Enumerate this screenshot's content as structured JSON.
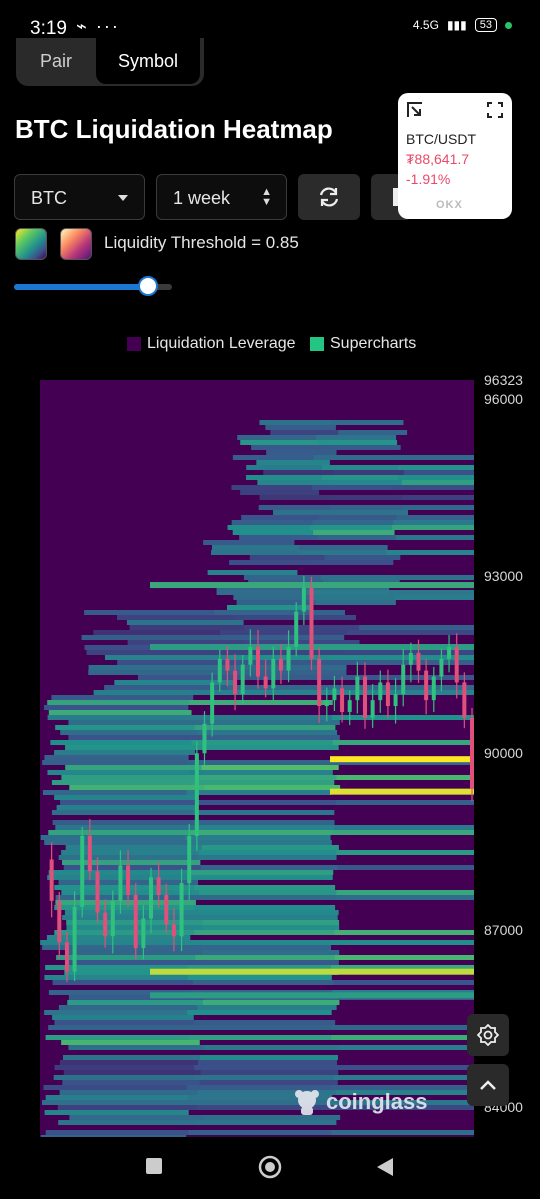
{
  "status_bar": {
    "time": "3:19",
    "network": "4.5G",
    "battery": "53"
  },
  "tabs": [
    {
      "label": "Pair"
    },
    {
      "label": "Symbol"
    }
  ],
  "title": "BTC Liquidation Heatmap",
  "controls": {
    "coin_select": {
      "value": "BTC"
    },
    "period_select": {
      "value": "1 week"
    }
  },
  "price_popup": {
    "pair": "BTC/USDT",
    "price": "₮88,641.7",
    "change": "-1.91%",
    "brand": "OKX"
  },
  "threshold_label": "Liquidity Threshold = 0.85",
  "slider": {
    "value": 0.85
  },
  "legend": [
    {
      "label": "Liquidation Leverage",
      "color": "#440154"
    },
    {
      "label": "Supercharts",
      "color": "#22c581"
    }
  ],
  "watermark": "coinglass",
  "chart_data": {
    "type": "heatmap",
    "title": "",
    "ylim": [
      83500,
      96323
    ],
    "y_ticks": [
      "96323",
      "96000",
      "93000",
      "90000",
      "87000",
      "84000"
    ],
    "y_tick_values": [
      96323,
      96000,
      93000,
      90000,
      87000,
      84000
    ],
    "colormap": [
      "#440154",
      "#3b528b",
      "#21918c",
      "#5ec962",
      "#fde725"
    ],
    "high_liquidity_levels": [
      {
        "price": 89900,
        "intensity": 1.0
      },
      {
        "price": 89350,
        "intensity": 0.95
      },
      {
        "price": 86300,
        "intensity": 0.9
      },
      {
        "price": 92850,
        "intensity": 0.6
      },
      {
        "price": 91800,
        "intensity": 0.55
      },
      {
        "price": 85900,
        "intensity": 0.55
      }
    ],
    "price_path": [
      88200,
      87500,
      86800,
      86300,
      87400,
      88600,
      88000,
      87300,
      86900,
      87500,
      88100,
      87600,
      86700,
      87200,
      87900,
      87600,
      87100,
      86900,
      87800,
      88600,
      90000,
      90500,
      91200,
      91600,
      91400,
      91000,
      91500,
      91800,
      91300,
      91100,
      91600,
      91400,
      91800,
      92400,
      92800,
      91600,
      90800,
      90900,
      91100,
      90700,
      90900,
      91300,
      90600,
      90900,
      91200,
      90800,
      91000,
      91500,
      91700,
      91400,
      90900,
      91300,
      91600,
      91800,
      91200,
      90600,
      89400
    ]
  }
}
